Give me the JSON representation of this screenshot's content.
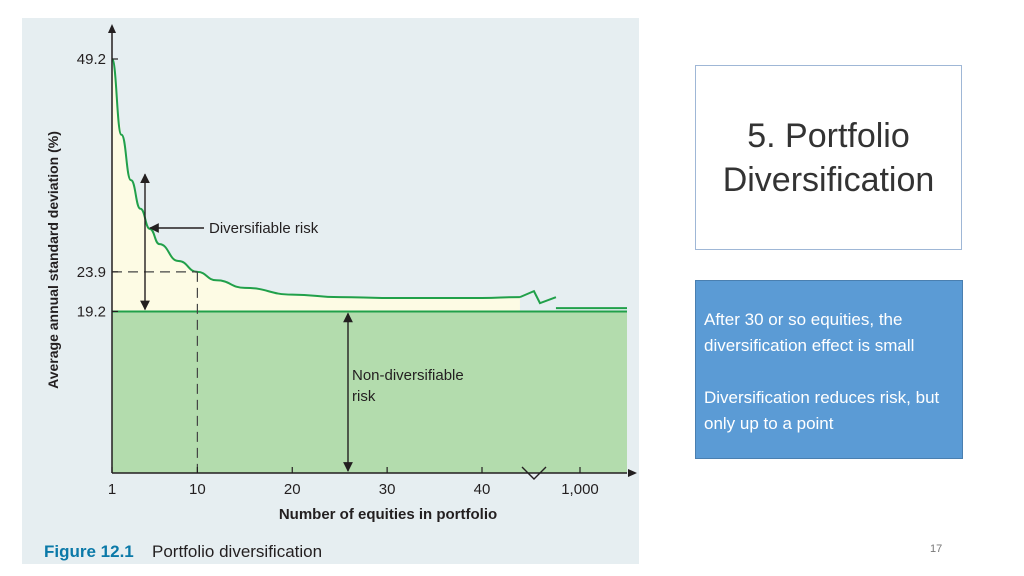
{
  "slide": {
    "title": "5. Portfolio Diversification",
    "notes": [
      "After 30 or so equities, the diversification effect is small",
      "Diversification reduces risk, but only up to a point"
    ],
    "page_number": "17"
  },
  "colors": {
    "curve": "#21a04a",
    "diversifiable_fill": "#fdfbe4",
    "non_diversifiable_fill": "#b3dcad",
    "panel": "#e6eef1",
    "caption_blue": "#0b79a8",
    "note_box": "#5b9bd5"
  },
  "chart_data": {
    "type": "line",
    "title": "",
    "caption_label": "Figure 12.1",
    "caption_text": "Portfolio diversification",
    "xlabel": "Number of equities in portfolio",
    "ylabel": "Average annual standard deviation (%)",
    "x_ticks": [
      "1",
      "10",
      "20",
      "30",
      "40",
      "1,000"
    ],
    "x_tick_values": [
      1,
      10,
      20,
      30,
      40,
      1000
    ],
    "y_ticks": [
      "49.2",
      "23.9",
      "19.2"
    ],
    "y_tick_values": [
      49.2,
      23.9,
      19.2
    ],
    "ylim": [
      0,
      49.2
    ],
    "xlim": [
      0,
      1000
    ],
    "axis_break": "between 40 and 1,000",
    "series": [
      {
        "name": "",
        "x": [
          1,
          2,
          3,
          4,
          5,
          6,
          8,
          10,
          12,
          15,
          20,
          25,
          30,
          35,
          40,
          44
        ],
        "y": [
          49.2,
          40.2,
          34.8,
          31.4,
          29.0,
          27.2,
          25.2,
          23.9,
          22.9,
          22.0,
          21.2,
          20.9,
          20.8,
          20.8,
          20.8,
          20.9
        ]
      }
    ],
    "curve_after_break": {
      "x": [
        1000
      ],
      "y": [
        19.6
      ]
    },
    "non_diversifiable_level": 19.2,
    "annotations": [
      {
        "text": "Diversifiable risk"
      },
      {
        "text": "Non-diversifiable risk",
        "lines": [
          "Non-diversifiable",
          "risk"
        ]
      }
    ],
    "grid": false
  }
}
